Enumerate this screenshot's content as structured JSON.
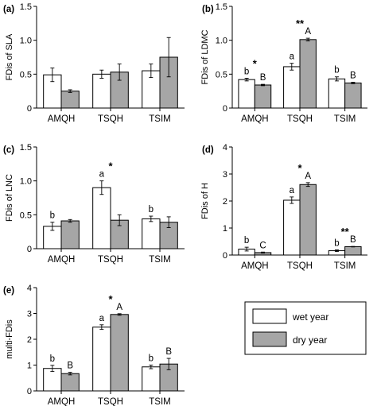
{
  "chart_data": [
    {
      "panel": "(a)",
      "type": "bar",
      "ylabel": "FDis of SLA",
      "ylim": [
        0,
        1.5
      ],
      "yticks": [
        0,
        0.5,
        1.0,
        1.5
      ],
      "ytick_labels": [
        "0",
        "0.5",
        "1.0",
        "1.5"
      ],
      "categories": [
        "AMQH",
        "TSQH",
        "TSIM"
      ],
      "series": [
        {
          "values": [
            0.49,
            0.5,
            0.55
          ],
          "errors": [
            0.1,
            0.06,
            0.1
          ]
        },
        {
          "values": [
            0.25,
            0.53,
            0.75
          ],
          "errors": [
            0.02,
            0.12,
            0.29
          ]
        }
      ],
      "annotations": []
    },
    {
      "panel": "(b)",
      "type": "bar",
      "ylabel": "FDis of LDMC",
      "ylim": [
        0,
        1.5
      ],
      "yticks": [
        0,
        0.5,
        1.0,
        1.5
      ],
      "ytick_labels": [
        "0",
        "0.5",
        "1.0",
        "1.5"
      ],
      "categories": [
        "AMQH",
        "TSQH",
        "TSIM"
      ],
      "series": [
        {
          "values": [
            0.42,
            0.61,
            0.43
          ],
          "errors": [
            0.02,
            0.05,
            0.03
          ]
        },
        {
          "values": [
            0.34,
            1.01,
            0.37
          ],
          "errors": [
            0.01,
            0.02,
            0.01
          ]
        }
      ],
      "annotations": [
        {
          "category": 0,
          "series": 0,
          "text": "b"
        },
        {
          "category": 0,
          "series": 1,
          "text": "B"
        },
        {
          "category": 0,
          "between": true,
          "text": "*"
        },
        {
          "category": 1,
          "series": 0,
          "text": "a"
        },
        {
          "category": 1,
          "series": 1,
          "text": "A"
        },
        {
          "category": 1,
          "between": true,
          "text": "**"
        },
        {
          "category": 2,
          "series": 0,
          "text": "b"
        },
        {
          "category": 2,
          "series": 1,
          "text": "B"
        }
      ]
    },
    {
      "panel": "(c)",
      "type": "bar",
      "ylabel": "FDis of LNC",
      "ylim": [
        0,
        1.5
      ],
      "yticks": [
        0,
        0.5,
        1.0,
        1.5
      ],
      "ytick_labels": [
        "0",
        "0.5",
        "1.0",
        "1.5"
      ],
      "categories": [
        "AMQH",
        "TSQH",
        "TSIM"
      ],
      "series": [
        {
          "values": [
            0.33,
            0.9,
            0.44
          ],
          "errors": [
            0.06,
            0.1,
            0.04
          ]
        },
        {
          "values": [
            0.41,
            0.42,
            0.39
          ],
          "errors": [
            0.02,
            0.08,
            0.08
          ]
        }
      ],
      "annotations": [
        {
          "category": 0,
          "series": 0,
          "text": "b"
        },
        {
          "category": 1,
          "series": 0,
          "text": "a"
        },
        {
          "category": 1,
          "between": true,
          "text": "*"
        },
        {
          "category": 2,
          "series": 0,
          "text": "b"
        }
      ]
    },
    {
      "panel": "(d)",
      "type": "bar",
      "ylabel": "FDis of H",
      "ylim": [
        0,
        4
      ],
      "yticks": [
        0,
        1,
        2,
        3,
        4
      ],
      "ytick_labels": [
        "0",
        "1",
        "2",
        "3",
        "4"
      ],
      "categories": [
        "AMQH",
        "TSQH",
        "TSIM"
      ],
      "series": [
        {
          "values": [
            0.22,
            2.03,
            0.16
          ],
          "errors": [
            0.07,
            0.12,
            0.03
          ]
        },
        {
          "values": [
            0.09,
            2.61,
            0.31
          ],
          "errors": [
            0.02,
            0.07,
            0.01
          ]
        }
      ],
      "annotations": [
        {
          "category": 0,
          "series": 0,
          "text": "b"
        },
        {
          "category": 0,
          "series": 1,
          "text": "C"
        },
        {
          "category": 1,
          "series": 0,
          "text": "a"
        },
        {
          "category": 1,
          "series": 1,
          "text": "A"
        },
        {
          "category": 1,
          "between": true,
          "text": "*"
        },
        {
          "category": 2,
          "series": 0,
          "text": "b"
        },
        {
          "category": 2,
          "series": 1,
          "text": "B"
        },
        {
          "category": 2,
          "between": true,
          "text": "**"
        }
      ]
    },
    {
      "panel": "(e)",
      "type": "bar",
      "ylabel": "multi-FDis",
      "ylim": [
        0,
        4
      ],
      "yticks": [
        0,
        1,
        2,
        3,
        4
      ],
      "ytick_labels": [
        "0",
        "1",
        "2",
        "3",
        "4"
      ],
      "categories": [
        "AMQH",
        "TSQH",
        "TSIM"
      ],
      "series": [
        {
          "values": [
            0.87,
            2.47,
            0.93
          ],
          "errors": [
            0.12,
            0.09,
            0.07
          ]
        },
        {
          "values": [
            0.67,
            2.96,
            1.04
          ],
          "errors": [
            0.05,
            0.03,
            0.22
          ]
        }
      ],
      "annotations": [
        {
          "category": 0,
          "series": 0,
          "text": "b"
        },
        {
          "category": 0,
          "series": 1,
          "text": "B"
        },
        {
          "category": 1,
          "series": 0,
          "text": "a"
        },
        {
          "category": 1,
          "series": 1,
          "text": "A"
        },
        {
          "category": 1,
          "between": true,
          "text": "*"
        },
        {
          "category": 2,
          "series": 0,
          "text": "b"
        },
        {
          "category": 2,
          "series": 1,
          "text": "B"
        }
      ]
    }
  ],
  "legend": {
    "placement": "right-of-panel-e",
    "items": [
      {
        "label": "wet year",
        "color": "#ffffff"
      },
      {
        "label": "dry year",
        "color": "#a6a6a6"
      }
    ]
  },
  "colors": {
    "wet": "#ffffff",
    "dry": "#a6a6a6",
    "edge": "#000000"
  }
}
